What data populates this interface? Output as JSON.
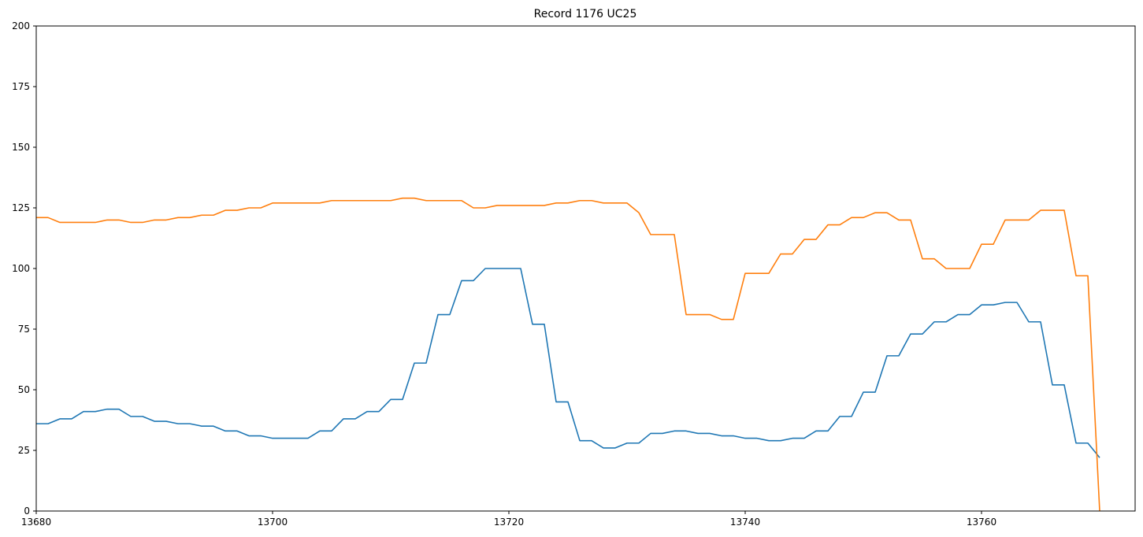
{
  "chart_data": {
    "type": "line",
    "title": "Record 1176 UC25",
    "xlabel": "",
    "ylabel": "",
    "xlim": [
      13680,
      13773
    ],
    "ylim": [
      0,
      200
    ],
    "xticks": [
      13680,
      13700,
      13720,
      13740,
      13760
    ],
    "yticks": [
      0,
      25,
      50,
      75,
      100,
      125,
      150,
      175,
      200
    ],
    "grid": false,
    "series": [
      {
        "color": "#1f77b4",
        "x": [
          13680,
          13681,
          13682,
          13683,
          13684,
          13685,
          13686,
          13687,
          13688,
          13689,
          13690,
          13691,
          13692,
          13693,
          13694,
          13695,
          13696,
          13697,
          13698,
          13699,
          13700,
          13701,
          13702,
          13703,
          13704,
          13705,
          13706,
          13707,
          13708,
          13709,
          13710,
          13711,
          13712,
          13713,
          13714,
          13715,
          13716,
          13717,
          13718,
          13719,
          13720,
          13721,
          13722,
          13723,
          13724,
          13725,
          13726,
          13727,
          13728,
          13729,
          13730,
          13731,
          13732,
          13733,
          13734,
          13735,
          13736,
          13737,
          13738,
          13739,
          13740,
          13741,
          13742,
          13743,
          13744,
          13745,
          13746,
          13747,
          13748,
          13749,
          13750,
          13751,
          13752,
          13753,
          13754,
          13755,
          13756,
          13757,
          13758,
          13759,
          13760,
          13761,
          13762,
          13763,
          13764,
          13765,
          13766,
          13767,
          13768,
          13769,
          13770
        ],
        "values": [
          36,
          36,
          38,
          38,
          41,
          41,
          42,
          42,
          39,
          39,
          37,
          37,
          36,
          36,
          35,
          35,
          33,
          33,
          31,
          31,
          30,
          30,
          30,
          30,
          33,
          33,
          38,
          38,
          41,
          41,
          46,
          46,
          61,
          61,
          81,
          81,
          95,
          95,
          100,
          100,
          100,
          100,
          77,
          77,
          45,
          45,
          29,
          29,
          26,
          26,
          28,
          28,
          32,
          32,
          33,
          33,
          32,
          32,
          31,
          31,
          30,
          30,
          29,
          29,
          30,
          30,
          33,
          33,
          39,
          39,
          49,
          49,
          64,
          64,
          73,
          73,
          78,
          78,
          81,
          81,
          85,
          85,
          86,
          86,
          78,
          78,
          52,
          52,
          28,
          28,
          22
        ]
      },
      {
        "color": "#ff7f0e",
        "x": [
          13680,
          13681,
          13682,
          13683,
          13684,
          13685,
          13686,
          13687,
          13688,
          13689,
          13690,
          13691,
          13692,
          13693,
          13694,
          13695,
          13696,
          13697,
          13698,
          13699,
          13700,
          13701,
          13702,
          13703,
          13704,
          13705,
          13706,
          13707,
          13708,
          13709,
          13710,
          13711,
          13712,
          13713,
          13714,
          13715,
          13716,
          13717,
          13718,
          13719,
          13720,
          13721,
          13722,
          13723,
          13724,
          13725,
          13726,
          13727,
          13728,
          13729,
          13730,
          13731,
          13732,
          13733,
          13734,
          13735,
          13736,
          13737,
          13738,
          13739,
          13740,
          13741,
          13742,
          13743,
          13744,
          13745,
          13746,
          13747,
          13748,
          13749,
          13750,
          13751,
          13752,
          13753,
          13754,
          13755,
          13756,
          13757,
          13758,
          13759,
          13760,
          13761,
          13762,
          13763,
          13764,
          13765,
          13766,
          13767,
          13768,
          13769,
          13770
        ],
        "values": [
          121,
          121,
          119,
          119,
          119,
          119,
          120,
          120,
          119,
          119,
          120,
          120,
          121,
          121,
          122,
          122,
          124,
          124,
          125,
          125,
          127,
          127,
          127,
          127,
          127,
          128,
          128,
          128,
          128,
          128,
          128,
          129,
          129,
          128,
          128,
          128,
          128,
          125,
          125,
          126,
          126,
          126,
          126,
          126,
          127,
          127,
          128,
          128,
          127,
          127,
          127,
          123,
          114,
          114,
          114,
          81,
          81,
          81,
          79,
          79,
          98,
          98,
          98,
          106,
          106,
          112,
          112,
          118,
          118,
          121,
          121,
          123,
          123,
          120,
          120,
          104,
          104,
          100,
          100,
          100,
          110,
          110,
          120,
          120,
          120,
          124,
          124,
          124,
          97,
          97,
          0
        ]
      }
    ]
  }
}
